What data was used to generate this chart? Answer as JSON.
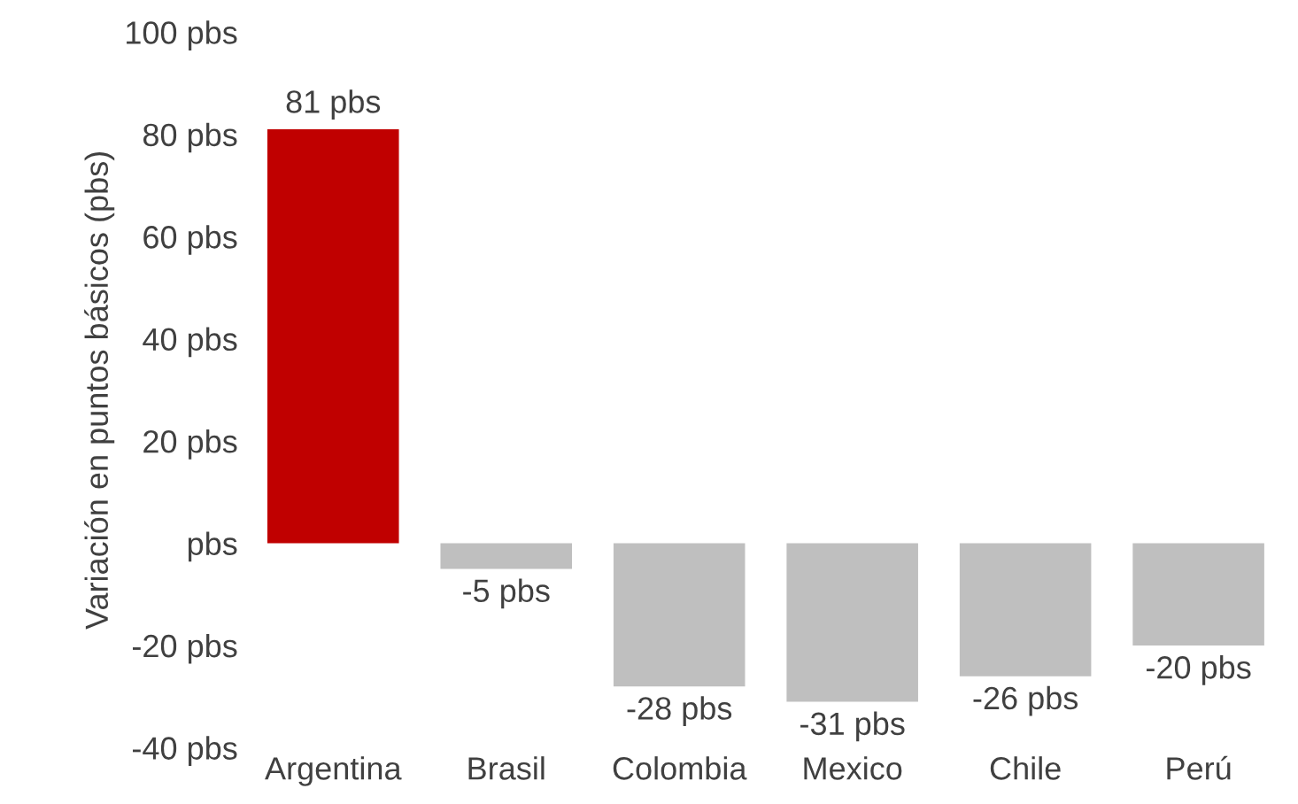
{
  "chart_data": {
    "type": "bar",
    "ylabel": "Variación en puntos básicos (pbs)",
    "categories": [
      "Argentina",
      "Brasil",
      "Colombia",
      "Mexico",
      "Chile",
      "Perú"
    ],
    "values": [
      81,
      -5,
      -28,
      -31,
      -26,
      -20
    ],
    "colors": [
      "#c00000",
      "#bfbfbf",
      "#bfbfbf",
      "#bfbfbf",
      "#bfbfbf",
      "#bfbfbf"
    ],
    "value_labels": [
      "81 pbs",
      "-5 pbs",
      "-28 pbs",
      "-31 pbs",
      "-26 pbs",
      "-20 pbs"
    ],
    "ylim": [
      -40,
      100
    ],
    "yticks": [
      {
        "value": -40,
        "label": "-40 pbs"
      },
      {
        "value": -20,
        "label": "-20 pbs"
      },
      {
        "value": 0,
        "label": "pbs"
      },
      {
        "value": 20,
        "label": "20 pbs"
      },
      {
        "value": 40,
        "label": "40 pbs"
      },
      {
        "value": 60,
        "label": "60 pbs"
      },
      {
        "value": 80,
        "label": "80 pbs"
      },
      {
        "value": 100,
        "label": "100 pbs"
      }
    ],
    "grid": false,
    "legend": false
  }
}
